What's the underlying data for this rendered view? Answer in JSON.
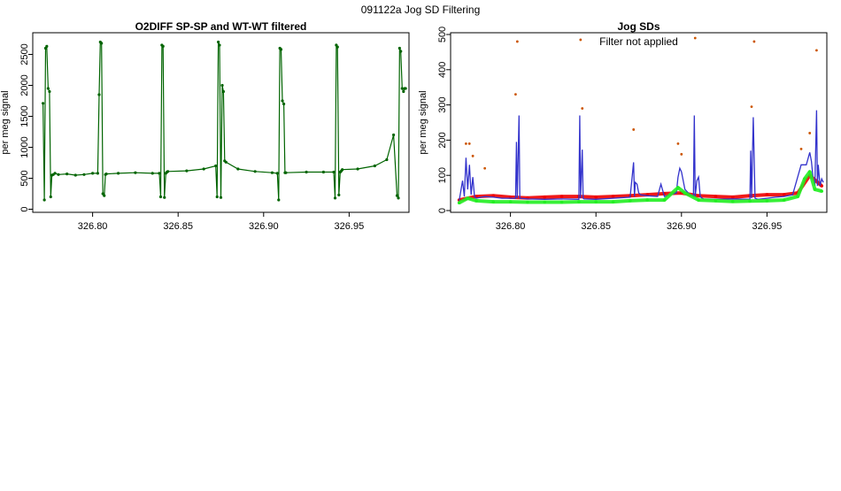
{
  "page_title": "091122a   Jog SD Filtering",
  "chart_data": [
    {
      "type": "line",
      "title": "O2DIFF SP-SP and WT-WT filtered",
      "xlabel": "",
      "ylabel": "per meg signal",
      "xlim": [
        326.765,
        326.985
      ],
      "ylim": [
        -50,
        2850
      ],
      "x_ticks": [
        326.8,
        326.85,
        326.9,
        326.95
      ],
      "x_tick_labels": [
        "326.80",
        "326.85",
        "326.90",
        "326.95"
      ],
      "y_ticks": [
        0,
        500,
        1000,
        1500,
        2000,
        2500
      ],
      "y_tick_labels": [
        "0",
        "500",
        "1000",
        "1500",
        "2000",
        "2500"
      ],
      "grid": false,
      "colors": {
        "series": "#006400"
      },
      "series": [
        {
          "x": [
            326.771,
            326.7718,
            326.7725,
            326.7732,
            326.774,
            326.7748,
            326.7755,
            326.7762,
            326.777,
            326.778,
            326.78,
            326.785,
            326.79,
            326.795,
            326.8,
            326.803,
            326.8038,
            326.8045,
            326.8052,
            326.806,
            326.8068,
            326.8075,
            326.808,
            326.815,
            326.825,
            326.835,
            326.839,
            326.8398,
            326.8405,
            326.8412,
            326.842,
            326.8428,
            326.8435,
            326.844,
            326.855,
            326.865,
            326.872,
            326.8728,
            326.8735,
            326.8742,
            326.875,
            326.8758,
            326.8765,
            326.8772,
            326.878,
            326.885,
            326.895,
            326.905,
            326.908,
            326.9088,
            326.9095,
            326.9102,
            326.911,
            326.9118,
            326.9125,
            326.913,
            326.925,
            326.935,
            326.941,
            326.9418,
            326.9425,
            326.9432,
            326.944,
            326.9448,
            326.9455,
            326.946,
            326.955,
            326.965,
            326.972,
            326.976,
            326.978,
            326.9788,
            326.9795,
            326.9802,
            326.981,
            326.9818,
            326.9825,
            326.983
          ],
          "y": [
            1710,
            150,
            2600,
            2630,
            1950,
            1900,
            200,
            550,
            560,
            580,
            560,
            570,
            550,
            560,
            580,
            580,
            1850,
            2700,
            2680,
            250,
            220,
            560,
            570,
            580,
            590,
            580,
            580,
            200,
            2650,
            2630,
            190,
            580,
            600,
            610,
            620,
            650,
            700,
            200,
            2700,
            2650,
            190,
            2000,
            1900,
            780,
            760,
            650,
            610,
            590,
            580,
            150,
            2600,
            2580,
            1750,
            1700,
            590,
            590,
            600,
            600,
            600,
            180,
            2650,
            2620,
            230,
            600,
            620,
            640,
            650,
            700,
            800,
            1200,
            220,
            180,
            2600,
            2550,
            1950,
            1900,
            1950,
            1950
          ]
        }
      ]
    },
    {
      "type": "line",
      "title": "Jog SDs",
      "subtitle": "Filter not applied",
      "xlabel": "",
      "ylabel": "per meg signal",
      "xlim": [
        326.765,
        326.985
      ],
      "ylim": [
        -5,
        505
      ],
      "x_ticks": [
        326.8,
        326.85,
        326.9,
        326.95
      ],
      "x_tick_labels": [
        "326.80",
        "326.85",
        "326.90",
        "326.95"
      ],
      "y_ticks": [
        0,
        100,
        200,
        300,
        400,
        500
      ],
      "y_tick_labels": [
        "0",
        "100",
        "200",
        "300",
        "400",
        "500"
      ],
      "grid": false,
      "colors": {
        "red": "#ee0000",
        "blue": "#3333cc",
        "green": "#22ee22",
        "orange": "#cc5500"
      },
      "series": [
        {
          "style": "band",
          "color": "red",
          "x": [
            326.77,
            326.78,
            326.79,
            326.8,
            326.81,
            326.82,
            326.83,
            326.84,
            326.85,
            326.86,
            326.87,
            326.88,
            326.89,
            326.9,
            326.91,
            326.92,
            326.93,
            326.94,
            326.95,
            326.96,
            326.968,
            326.975,
            326.982
          ],
          "y": [
            30,
            40,
            42,
            38,
            36,
            38,
            40,
            40,
            38,
            40,
            42,
            45,
            48,
            50,
            42,
            40,
            38,
            42,
            45,
            45,
            50,
            100,
            70
          ]
        },
        {
          "style": "line",
          "color": "blue",
          "x": [
            326.77,
            326.772,
            326.773,
            326.774,
            326.775,
            326.776,
            326.777,
            326.778,
            326.779,
            326.78,
            326.785,
            326.79,
            326.795,
            326.803,
            326.8035,
            326.804,
            326.805,
            326.8055,
            326.806,
            326.81,
            326.82,
            326.83,
            326.84,
            326.8405,
            326.841,
            326.842,
            326.8425,
            326.843,
            326.85,
            326.86,
            326.87,
            326.872,
            326.8725,
            326.873,
            326.874,
            326.875,
            326.876,
            326.88,
            326.886,
            326.888,
            326.89,
            326.897,
            326.898,
            326.899,
            326.9,
            326.902,
            326.904,
            326.907,
            326.9075,
            326.908,
            326.909,
            326.91,
            326.911,
            326.912,
            326.913,
            326.92,
            326.93,
            326.94,
            326.9405,
            326.941,
            326.942,
            326.943,
            326.944,
            326.945,
            326.95,
            326.955,
            326.96,
            326.965,
            326.97,
            326.973,
            326.975,
            326.976,
            326.977,
            326.978,
            326.979,
            326.9795,
            326.98,
            326.981,
            326.982,
            326.983
          ],
          "y": [
            28,
            85,
            40,
            150,
            60,
            130,
            45,
            95,
            40,
            35,
            40,
            38,
            35,
            35,
            195,
            35,
            270,
            35,
            35,
            33,
            32,
            33,
            32,
            270,
            35,
            173,
            35,
            33,
            32,
            35,
            38,
            137,
            40,
            80,
            75,
            50,
            45,
            42,
            40,
            75,
            40,
            50,
            95,
            120,
            110,
            60,
            50,
            40,
            270,
            40,
            85,
            95,
            40,
            35,
            33,
            32,
            33,
            32,
            170,
            35,
            265,
            35,
            33,
            32,
            35,
            38,
            40,
            45,
            130,
            130,
            165,
            140,
            90,
            70,
            285,
            70,
            130,
            70,
            90,
            80
          ]
        },
        {
          "style": "band",
          "color": "green",
          "x": [
            326.77,
            326.775,
            326.78,
            326.79,
            326.8,
            326.81,
            326.82,
            326.83,
            326.84,
            326.85,
            326.86,
            326.87,
            326.88,
            326.89,
            326.898,
            326.902,
            326.91,
            326.92,
            326.93,
            326.94,
            326.95,
            326.96,
            326.968,
            326.972,
            326.975,
            326.978,
            326.982
          ],
          "y": [
            22,
            35,
            28,
            25,
            25,
            24,
            24,
            24,
            25,
            25,
            25,
            28,
            30,
            30,
            65,
            50,
            30,
            28,
            26,
            27,
            28,
            30,
            40,
            90,
            110,
            60,
            55
          ]
        },
        {
          "style": "points",
          "color": "orange",
          "x": [
            326.774,
            326.776,
            326.778,
            326.785,
            326.803,
            326.804,
            326.841,
            326.842,
            326.872,
            326.898,
            326.9,
            326.908,
            326.941,
            326.9425,
            326.97,
            326.975,
            326.979
          ],
          "y": [
            190,
            190,
            155,
            120,
            330,
            480,
            485,
            290,
            230,
            190,
            160,
            490,
            295,
            480,
            175,
            220,
            455
          ]
        }
      ]
    }
  ]
}
